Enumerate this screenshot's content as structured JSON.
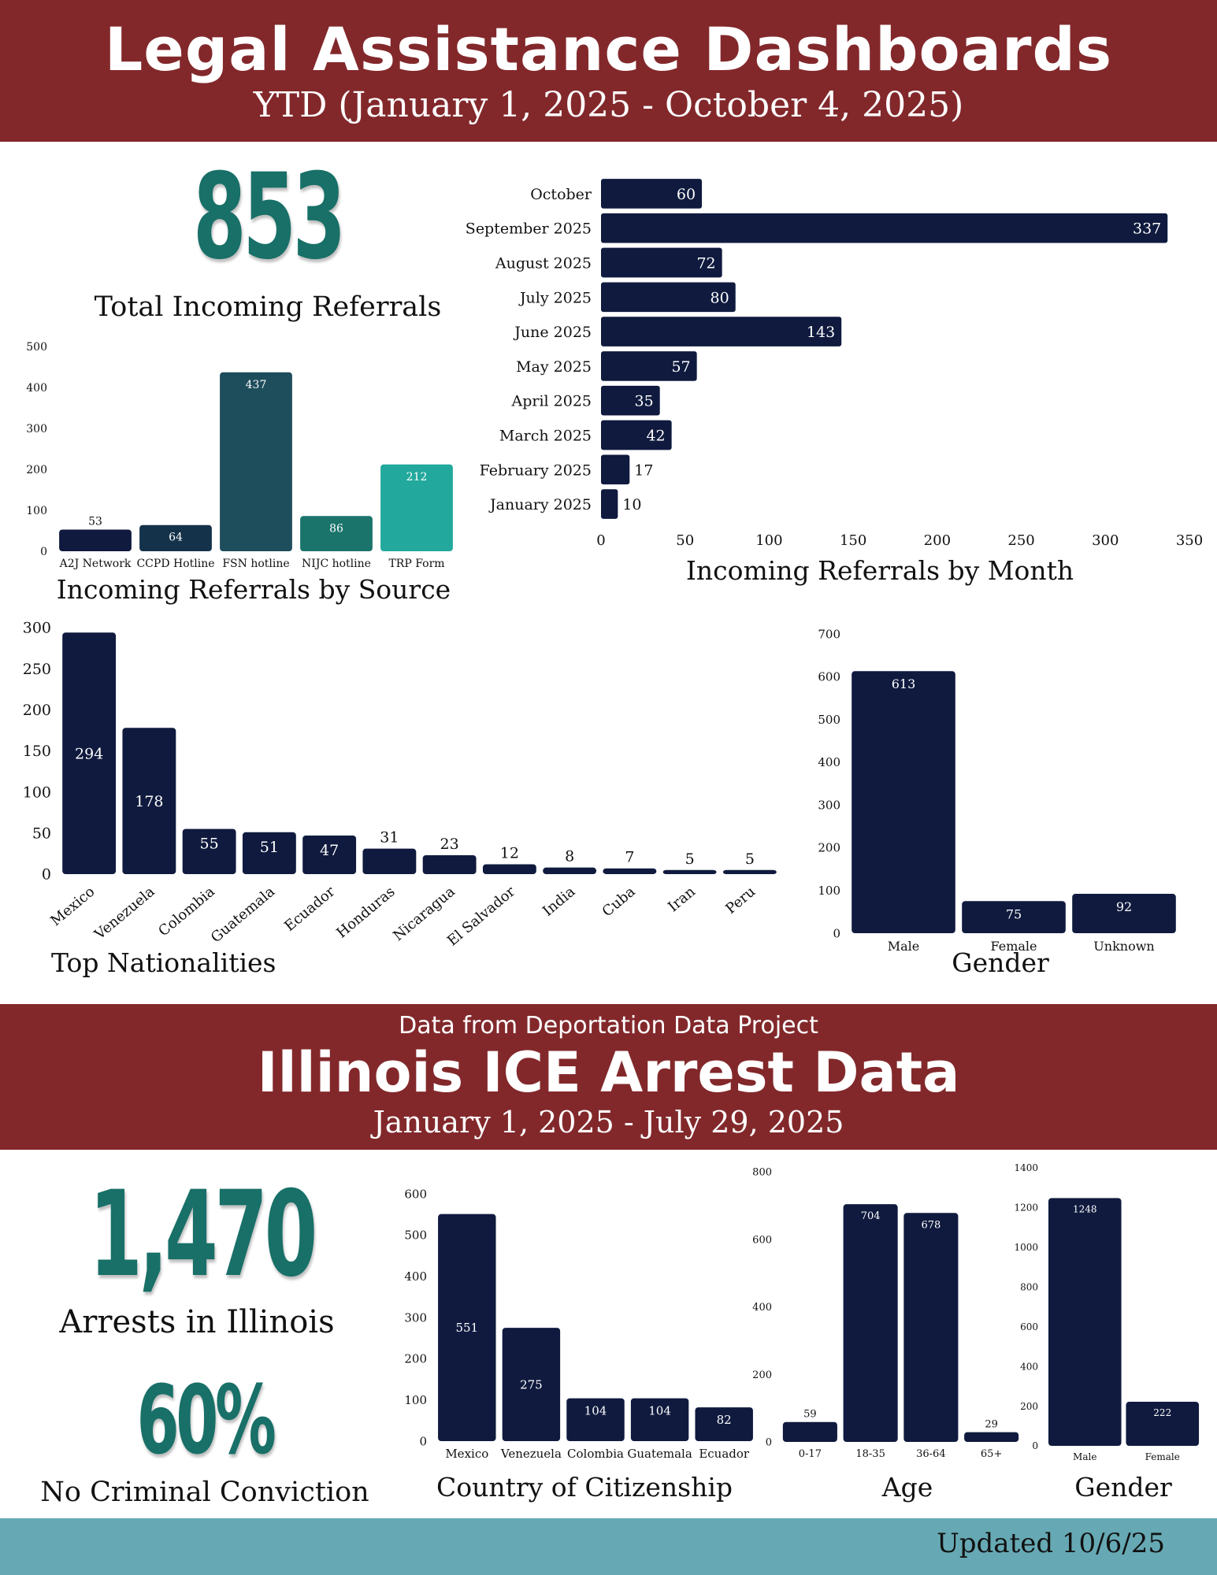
{
  "header": {
    "title": "Legal Assistance Dashboards",
    "subtitle": "YTD (January 1, 2025 - October 4, 2025)"
  },
  "referrals_total": {
    "value": "853",
    "label": "Total Incoming Referrals"
  },
  "section2": {
    "pretitle": "Data from Deportation Data Project",
    "title": "Illinois ICE Arrest Data",
    "subtitle": "January 1, 2025 - July 29, 2025"
  },
  "arrests": {
    "value": "1,470",
    "label": "Arrests in Illinois",
    "pct": "60%",
    "pct_label": "No Criminal Conviction"
  },
  "footer": {
    "updated": "Updated 10/6/25"
  },
  "colors": {
    "band": "#82282b",
    "navy": "#0f1a3e",
    "teal_dark": "#1e4d5c",
    "teal_mid": "#1a746b",
    "teal_light": "#22a89c",
    "stat": "#187068",
    "footer": "#66a9b4"
  },
  "chart_data": [
    {
      "id": "by-source",
      "type": "bar",
      "title": "Incoming Referrals by Source",
      "categories": [
        "A2J Network",
        "CCPD Hotline",
        "FSN hotline",
        "NIJC hotline",
        "TRP Form"
      ],
      "values": [
        53,
        64,
        437,
        86,
        212
      ],
      "bar_colors": [
        "#0f1a3e",
        "#15324b",
        "#1e4d5c",
        "#1a746b",
        "#22a89c"
      ],
      "ylim": [
        0,
        500
      ],
      "yticks": [
        0,
        100,
        200,
        300,
        400,
        500
      ]
    },
    {
      "id": "by-month",
      "type": "bar",
      "orientation": "horizontal",
      "title": "Incoming Referrals by Month",
      "categories": [
        "October",
        "September 2025",
        "August 2025",
        "July 2025",
        "June 2025",
        "May 2025",
        "April 2025",
        "March 2025",
        "February 2025",
        "January 2025"
      ],
      "values": [
        60,
        337,
        72,
        80,
        143,
        57,
        35,
        42,
        17,
        10
      ],
      "xlim": [
        0,
        350
      ],
      "xticks": [
        0,
        50,
        100,
        150,
        200,
        250,
        300,
        350
      ]
    },
    {
      "id": "nationalities",
      "type": "bar",
      "title": "Top Nationalities",
      "categories": [
        "Mexico",
        "Venezuela",
        "Colombia",
        "Guatemala",
        "Ecuador",
        "Honduras",
        "Nicaragua",
        "El Salvador",
        "India",
        "Cuba",
        "Iran",
        "Peru"
      ],
      "values": [
        294,
        178,
        55,
        51,
        47,
        31,
        23,
        12,
        8,
        7,
        5,
        5
      ],
      "ylim": [
        0,
        300
      ],
      "yticks": [
        0,
        50,
        100,
        150,
        200,
        250,
        300
      ]
    },
    {
      "id": "gender-referrals",
      "type": "bar",
      "title": "Gender",
      "categories": [
        "Male",
        "Female",
        "Unknown"
      ],
      "values": [
        613,
        75,
        92
      ],
      "ylim": [
        0,
        700
      ],
      "yticks": [
        0,
        100,
        200,
        300,
        400,
        500,
        600,
        700
      ]
    },
    {
      "id": "citizenship",
      "type": "bar",
      "title": "Country of Citizenship",
      "categories": [
        "Mexico",
        "Venezuela",
        "Colombia",
        "Guatemala",
        "Ecuador"
      ],
      "values": [
        551,
        275,
        104,
        104,
        82
      ],
      "ylim": [
        0,
        600
      ],
      "yticks": [
        0,
        100,
        200,
        300,
        400,
        500,
        600
      ]
    },
    {
      "id": "age",
      "type": "bar",
      "title": "Age",
      "categories": [
        "0-17",
        "18-35",
        "36-64",
        "65+"
      ],
      "values": [
        59,
        704,
        678,
        29
      ],
      "ylim": [
        0,
        800
      ],
      "yticks": [
        0,
        200,
        400,
        600,
        800
      ]
    },
    {
      "id": "gender-arrests",
      "type": "bar",
      "title": "Gender",
      "categories": [
        "Male",
        "Female"
      ],
      "values": [
        1248,
        222
      ],
      "ylim": [
        0,
        1400
      ],
      "yticks": [
        0,
        200,
        400,
        600,
        800,
        1000,
        1200,
        1400
      ]
    }
  ]
}
